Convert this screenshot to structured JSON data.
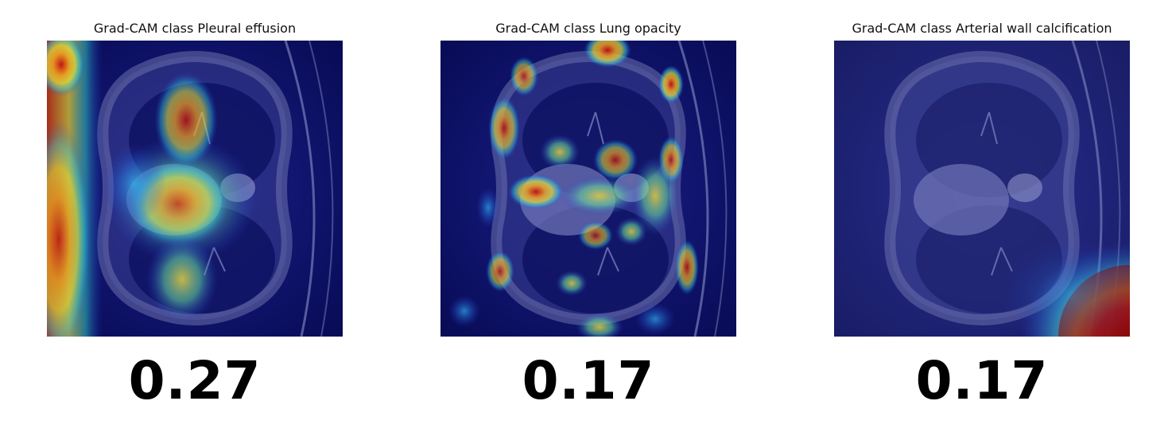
{
  "panels": [
    {
      "title": "Grad-CAM class Pleural effusion",
      "score": "0.27"
    },
    {
      "title": "Grad-CAM class Lung opacity",
      "score": "0.17"
    },
    {
      "title": "Grad-CAM class Arterial wall calcification",
      "score": "0.17"
    }
  ],
  "colors": {
    "background_dark": "#0a0d5e",
    "heat_red": "#b01010",
    "heat_yellow": "#e8d040",
    "heat_cyan": "#30c8e0"
  }
}
